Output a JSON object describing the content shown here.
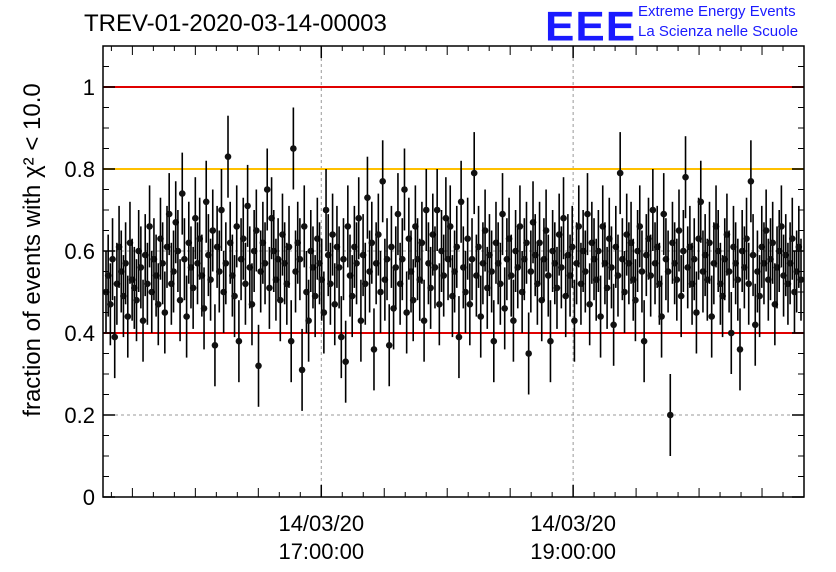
{
  "header": {
    "title": "TREV-01-2020-03-14-00003",
    "logo_text": "EEE",
    "logo_line1": "Extreme Energy Events",
    "logo_line2": "La Scienza nelle Scuole"
  },
  "colors": {
    "upper_limit": "#e00000",
    "warning": "#ffc000",
    "lower_limit": "#e00000",
    "points": "#000000",
    "logo": "#1a1aff",
    "grid": "#999999"
  },
  "chart_data": {
    "type": "scatter",
    "title": "TREV-01-2020-03-14-00003",
    "xlabel": "",
    "ylabel": "fraction of events with χ² < 10.0",
    "x_start": "14/03/20 15:16:00",
    "x_end": "14/03/20 20:50:00",
    "x_tick_labels": [
      {
        "date": "14/03/20",
        "time": "17:00:00"
      },
      {
        "date": "14/03/20",
        "time": "19:00:00"
      }
    ],
    "ylim": [
      0,
      1.1
    ],
    "y_ticks": [
      0,
      0.2,
      0.4,
      0.6,
      0.8,
      1
    ],
    "grid": true,
    "reference_lines": [
      {
        "y": 1.0,
        "color": "#e00000"
      },
      {
        "y": 0.8,
        "color": "#ffc000"
      },
      {
        "y": 0.4,
        "color": "#e00000"
      }
    ],
    "series": [
      {
        "values": [
          0.5,
          0.54,
          0.47,
          0.58,
          0.39,
          0.52,
          0.61,
          0.55,
          0.49,
          0.57,
          0.44,
          0.62,
          0.53,
          0.51,
          0.48,
          0.6,
          0.56,
          0.43,
          0.59,
          0.52,
          0.66,
          0.5,
          0.58,
          0.54,
          0.47,
          0.63,
          0.57,
          0.45,
          0.61,
          0.69,
          0.52,
          0.55,
          0.67,
          0.6,
          0.48,
          0.74,
          0.58,
          0.44,
          0.62,
          0.56,
          0.51,
          0.68,
          0.57,
          0.63,
          0.54,
          0.46,
          0.72,
          0.59,
          0.53,
          0.65,
          0.37,
          0.61,
          0.55,
          0.7,
          0.5,
          0.57,
          0.83,
          0.62,
          0.54,
          0.49,
          0.66,
          0.38,
          0.58,
          0.63,
          0.52,
          0.71,
          0.56,
          0.47,
          0.6,
          0.65,
          0.32,
          0.55,
          0.62,
          0.57,
          0.75,
          0.51,
          0.68,
          0.6,
          0.53,
          0.58,
          0.48,
          0.64,
          0.57,
          0.52,
          0.61,
          0.38,
          0.85,
          0.55,
          0.62,
          0.58,
          0.31,
          0.66,
          0.5,
          0.43,
          0.6,
          0.56,
          0.49,
          0.63,
          0.57,
          0.53,
          0.45,
          0.7,
          0.59,
          0.52,
          0.64,
          0.47,
          0.61,
          0.56,
          0.39,
          0.58,
          0.33,
          0.66,
          0.54,
          0.49,
          0.61,
          0.57,
          0.68,
          0.43,
          0.59,
          0.52,
          0.73,
          0.55,
          0.62,
          0.36,
          0.57,
          0.64,
          0.5,
          0.77,
          0.53,
          0.58,
          0.37,
          0.61,
          0.46,
          0.56,
          0.69,
          0.52,
          0.58,
          0.75,
          0.45,
          0.63,
          0.55,
          0.48,
          0.66,
          0.58,
          0.53,
          0.62,
          0.43,
          0.7,
          0.57,
          0.51,
          0.64,
          0.56,
          0.7,
          0.47,
          0.6,
          0.54,
          0.68,
          0.58,
          0.66,
          0.49,
          0.55,
          0.61,
          0.39,
          0.72,
          0.56,
          0.5,
          0.63,
          0.47,
          0.58,
          0.79,
          0.54,
          0.61,
          0.44,
          0.57,
          0.65,
          0.51,
          0.59,
          0.55,
          0.38,
          0.62,
          0.57,
          0.52,
          0.69,
          0.46,
          0.58,
          0.63,
          0.54,
          0.43,
          0.6,
          0.56,
          0.66,
          0.5,
          0.58,
          0.62,
          0.35,
          0.55,
          0.67,
          0.59,
          0.52,
          0.62,
          0.48,
          0.58,
          0.65,
          0.54,
          0.38,
          0.6,
          0.57,
          0.51,
          0.64,
          0.56,
          0.68,
          0.49,
          0.59,
          0.54,
          0.61,
          0.43,
          0.57,
          0.66,
          0.52,
          0.6,
          0.55,
          0.69,
          0.47,
          0.62,
          0.58,
          0.53,
          0.6,
          0.44,
          0.66,
          0.57,
          0.51,
          0.63,
          0.56,
          0.42,
          0.61,
          0.54,
          0.79,
          0.58,
          0.5,
          0.64,
          0.57,
          0.62,
          0.53,
          0.48,
          0.6,
          0.66,
          0.55,
          0.38,
          0.59,
          0.63,
          0.54,
          0.7,
          0.57,
          0.61,
          0.52,
          0.44,
          0.69,
          0.58,
          0.55,
          0.2,
          0.62,
          0.57,
          0.53,
          0.65,
          0.49,
          0.6,
          0.78,
          0.56,
          0.61,
          0.52,
          0.58,
          0.45,
          0.63,
          0.72,
          0.55,
          0.59,
          0.53,
          0.62,
          0.44,
          0.57,
          0.66,
          0.6,
          0.52,
          0.49,
          0.58,
          0.64,
          0.55,
          0.4,
          0.61,
          0.57,
          0.53,
          0.36,
          0.6,
          0.56,
          0.63,
          0.52,
          0.77,
          0.59,
          0.42,
          0.55,
          0.49,
          0.61,
          0.57,
          0.65,
          0.53,
          0.58,
          0.62,
          0.47,
          0.56,
          0.6,
          0.66,
          0.54,
          0.59,
          0.52,
          0.57,
          0.63,
          0.5,
          0.55,
          0.61,
          0.53
        ],
        "error": 0.1
      }
    ]
  }
}
